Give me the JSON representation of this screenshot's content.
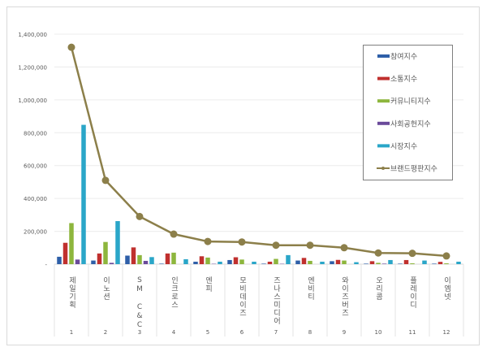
{
  "chart_data": {
    "type": "bar+line",
    "title": "",
    "xlabel": "",
    "ylabel": "",
    "ylim": [
      0,
      1400000
    ],
    "yticks": [
      "-",
      "200,000",
      "400,000",
      "600,000",
      "800,000",
      "1,000,000",
      "1,200,000",
      "1,400,000"
    ],
    "grid": true,
    "legend_position": "top-right",
    "categories": [
      "제일기획",
      "이노션",
      "SM C&C",
      "인크로스",
      "엔피",
      "모비데이즈",
      "즈나스미디어",
      "엔비티",
      "와이즈버즈",
      "오리콤",
      "플레이디",
      "이엠넷"
    ],
    "ranks": [
      "1",
      "2",
      "3",
      "4",
      "5",
      "6",
      "7",
      "8",
      "9",
      "10",
      "11",
      "12"
    ],
    "series": [
      {
        "name": "참여지수",
        "type": "bar",
        "color": "#2e5fa8",
        "values": [
          45000,
          22000,
          52000,
          3000,
          15000,
          25000,
          3000,
          22000,
          18000,
          3000,
          3000,
          3000
        ]
      },
      {
        "name": "소통지수",
        "type": "bar",
        "color": "#c0302e",
        "values": [
          130000,
          65000,
          102000,
          65000,
          48000,
          42000,
          15000,
          38000,
          26000,
          18000,
          25000,
          14000
        ]
      },
      {
        "name": "커뮤니티지수",
        "type": "bar",
        "color": "#8db63d",
        "values": [
          250000,
          135000,
          55000,
          70000,
          40000,
          28000,
          32000,
          20000,
          22000,
          8000,
          5000,
          5000
        ]
      },
      {
        "name": "사회공헌지수",
        "type": "bar",
        "color": "#6a4a9a",
        "values": [
          28000,
          8000,
          20000,
          0,
          2000,
          0,
          2000,
          0,
          0,
          3000,
          0,
          0
        ]
      },
      {
        "name": "시장지수",
        "type": "bar",
        "color": "#2aa6c8",
        "values": [
          848000,
          262000,
          43000,
          30000,
          15000,
          15000,
          55000,
          15000,
          12000,
          25000,
          22000,
          15000
        ]
      },
      {
        "name": "브랜드평판지수",
        "type": "line",
        "color": "#8c7f4a",
        "values": [
          1320000,
          510000,
          290000,
          183000,
          138000,
          135000,
          115000,
          115000,
          100000,
          68000,
          66000,
          50000
        ]
      }
    ]
  }
}
